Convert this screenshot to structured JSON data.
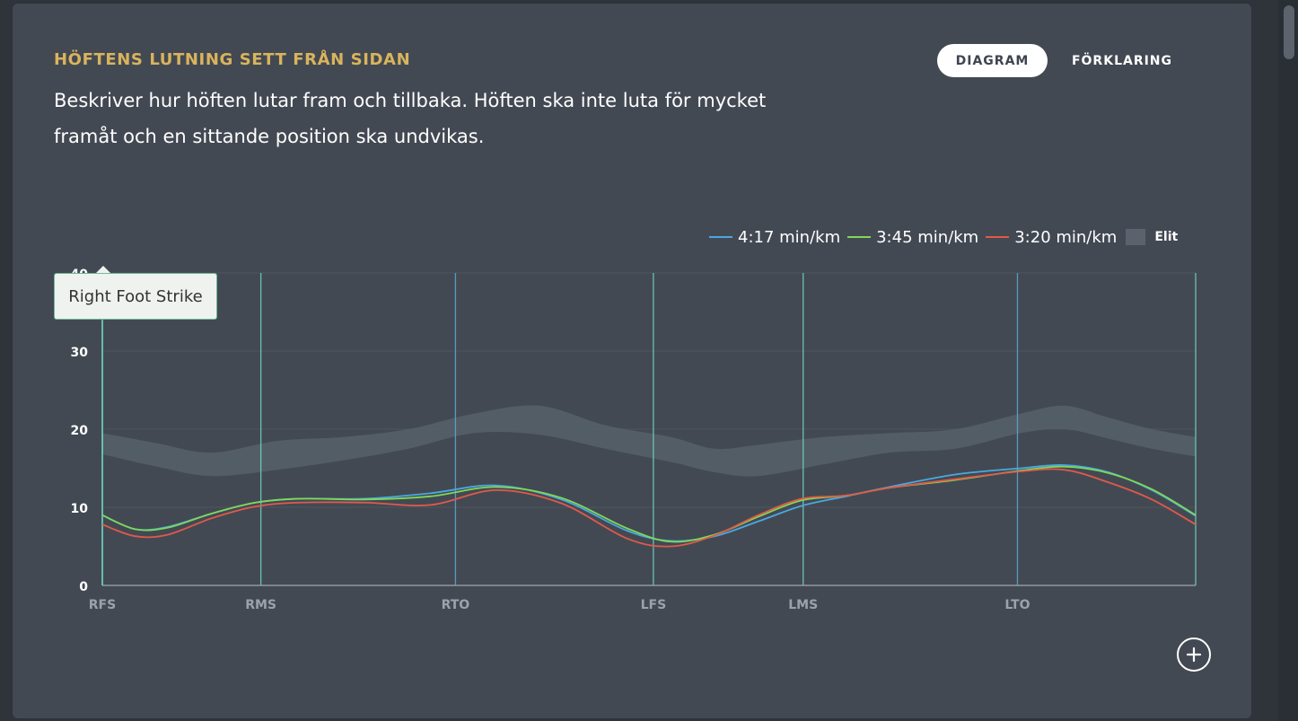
{
  "card": {
    "title": "HÖFTENS LUTNING SETT FRÅN SIDAN",
    "description_line1": "Beskriver hur höften lutar fram och tillbaka. Höften ska inte luta för mycket",
    "description_line2": "framåt och en sittande position ska undvikas."
  },
  "tabs": [
    {
      "label": "DIAGRAM",
      "active": true
    },
    {
      "label": "FÖRKLARING",
      "active": false
    }
  ],
  "tooltip": {
    "text": "Right Foot Strike"
  },
  "zoom_button": {
    "icon": "plus-circle-icon"
  },
  "chart_data": {
    "type": "line",
    "xlabel": "",
    "ylabel": "",
    "ylim": [
      0,
      40
    ],
    "yticks": [
      0,
      10,
      20,
      30,
      40
    ],
    "xlim": [
      0,
      100
    ],
    "phase_markers": [
      {
        "label": "RFS",
        "x": 0,
        "color": "#6fd6c4"
      },
      {
        "label": "RMS",
        "x": 14.5,
        "color": "#6fd6c4"
      },
      {
        "label": "RTO",
        "x": 32.3,
        "color": "#5ba7d6"
      },
      {
        "label": "LFS",
        "x": 50.4,
        "color": "#6fd6c4"
      },
      {
        "label": "LMS",
        "x": 64.1,
        "color": "#6fd6c4"
      },
      {
        "label": "LTO",
        "x": 83.7,
        "color": "#5ba7d6"
      },
      {
        "label": "",
        "x": 100,
        "color": "#6fd6c4"
      }
    ],
    "x": [
      0,
      3,
      6,
      10,
      14,
      18,
      24,
      30,
      36,
      42,
      48,
      52,
      56,
      60,
      64,
      68,
      72,
      78,
      84,
      88,
      92,
      96,
      100
    ],
    "series": [
      {
        "name": "4:17 min/km",
        "color": "#4aa8e0",
        "values": [
          9,
          7.2,
          7.5,
          9.2,
          10.6,
          11.1,
          11.1,
          11.8,
          12.8,
          11.0,
          7.0,
          5.7,
          6.3,
          8.2,
          10.2,
          11.4,
          12.6,
          14.2,
          15.0,
          15.4,
          14.5,
          12.2,
          8.9
        ]
      },
      {
        "name": "3:45 min/km",
        "color": "#7ed957",
        "values": [
          9,
          7.2,
          7.4,
          9.2,
          10.6,
          11.1,
          11.0,
          11.4,
          12.6,
          11.2,
          7.3,
          5.6,
          6.5,
          8.8,
          10.9,
          11.5,
          12.5,
          13.5,
          14.7,
          15.2,
          14.4,
          12.3,
          9.0
        ]
      },
      {
        "name": "3:20 min/km",
        "color": "#e05a4a",
        "values": [
          7.8,
          6.3,
          6.5,
          8.6,
          10.1,
          10.6,
          10.6,
          10.3,
          12.2,
          10.5,
          6.0,
          5.0,
          6.4,
          9.0,
          11.1,
          11.5,
          12.5,
          13.6,
          14.6,
          14.8,
          13.2,
          11.0,
          7.8
        ]
      }
    ],
    "band": {
      "name": "Elit",
      "color": "#56606a",
      "x": [
        0,
        5,
        10,
        16,
        22,
        28,
        34,
        40,
        46,
        52,
        56,
        60,
        66,
        72,
        78,
        84,
        88,
        92,
        96,
        100
      ],
      "upper": [
        19.5,
        18.2,
        17.0,
        18.5,
        19.0,
        20.0,
        22.0,
        23.0,
        20.5,
        19.0,
        17.5,
        18.0,
        19.0,
        19.5,
        20.0,
        22.0,
        23.0,
        21.5,
        20.0,
        19.0
      ],
      "lower": [
        16.8,
        15.2,
        14.0,
        14.8,
        16.0,
        17.5,
        19.5,
        19.3,
        17.5,
        15.8,
        14.5,
        14.0,
        15.5,
        17.0,
        17.5,
        19.5,
        20.0,
        18.8,
        17.5,
        16.5
      ]
    },
    "grid": true,
    "legend_position": "top-right"
  }
}
